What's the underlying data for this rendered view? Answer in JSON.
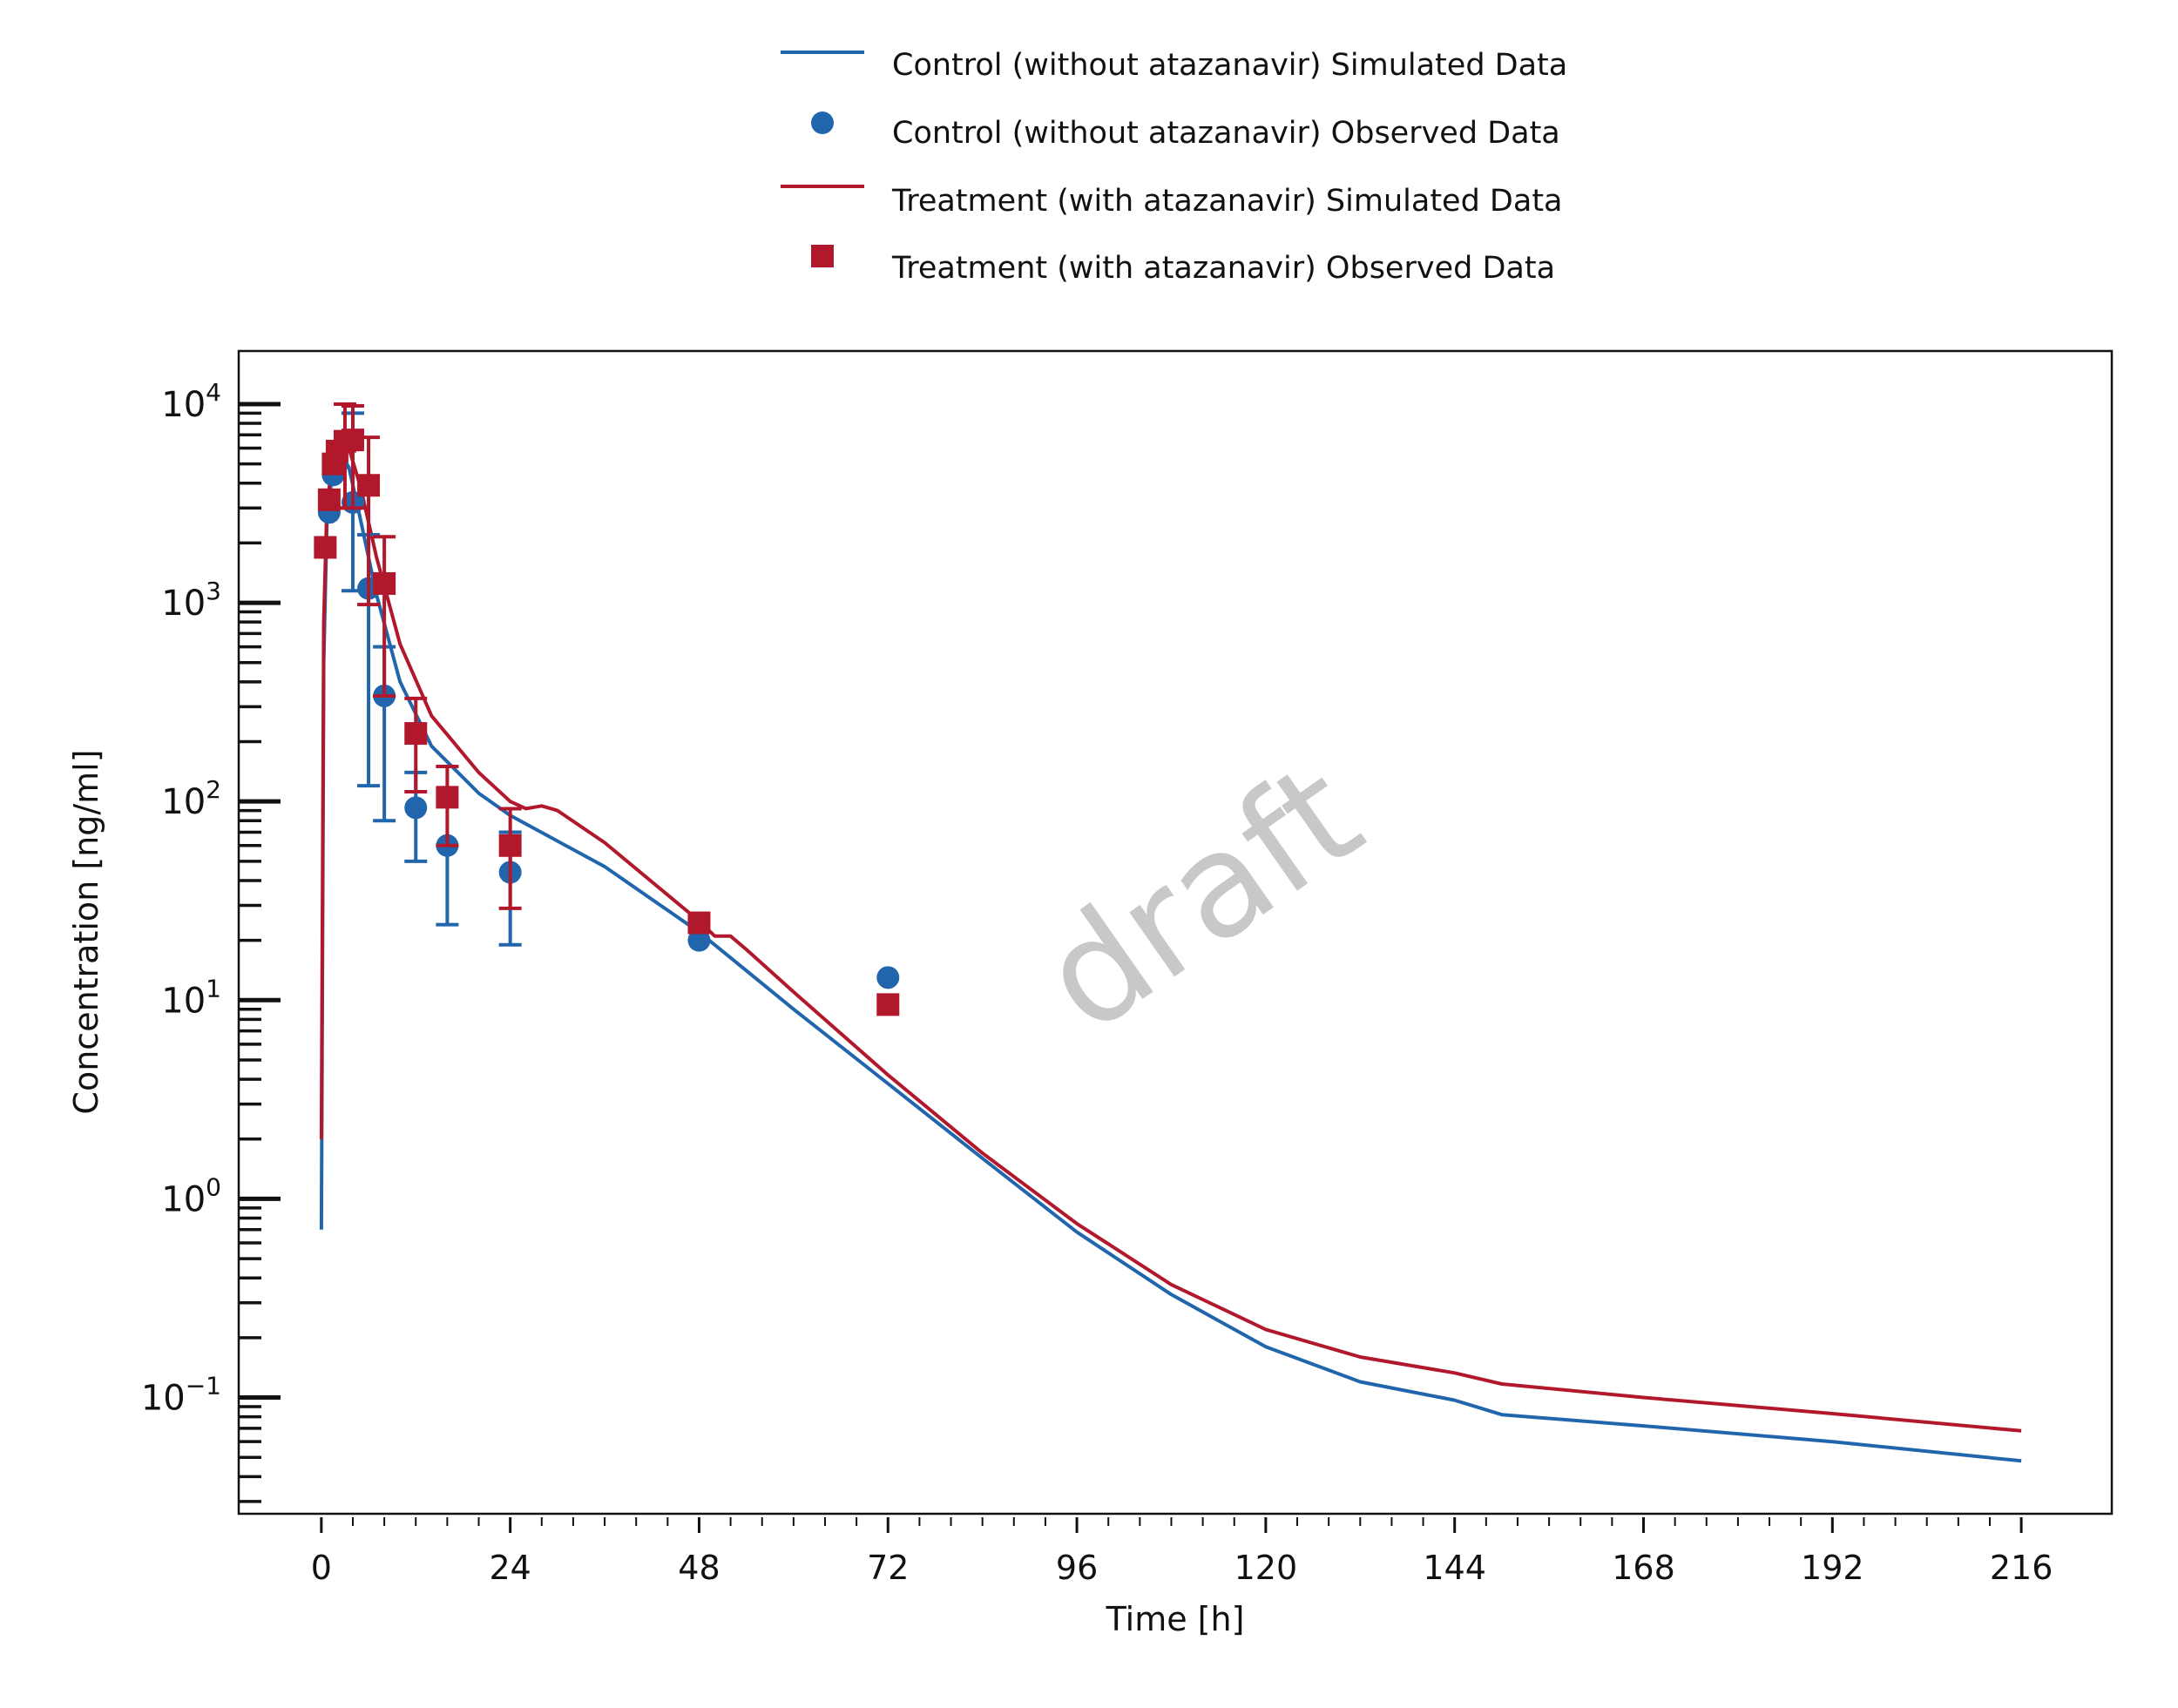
{
  "chart_data": {
    "type": "line",
    "title": "",
    "xlabel": "Time [h]",
    "ylabel": "Concentration [ng/ml]",
    "xlim": [
      -10.5,
      227.5
    ],
    "ylim": [
      0.026,
      18500
    ],
    "yscale": "log",
    "xticks": [
      0,
      24,
      48,
      72,
      96,
      120,
      144,
      168,
      192,
      216
    ],
    "yticks": [
      {
        "base": "10",
        "exp": "−1",
        "value": 0.1
      },
      {
        "base": "10",
        "exp": "0",
        "value": 1
      },
      {
        "base": "10",
        "exp": "1",
        "value": 10
      },
      {
        "base": "10",
        "exp": "2",
        "value": 100
      },
      {
        "base": "10",
        "exp": "3",
        "value": 1000
      },
      {
        "base": "10",
        "exp": "4",
        "value": 10000
      }
    ],
    "legend_position": "top-center",
    "watermark": "draft",
    "colors": {
      "control": "#2166ac",
      "treatment": "#b2182b",
      "watermark": "#c8c8c8"
    },
    "series": [
      {
        "name": "Control (without atazanavir) Simulated Data",
        "kind": "line",
        "color": "#2166ac",
        "x": [
          0,
          0.3,
          0.7,
          1.5,
          2.5,
          3.5,
          5,
          7,
          10,
          14,
          20,
          24,
          36,
          48,
          60,
          72,
          84,
          96,
          108,
          120,
          132,
          144,
          150,
          168,
          192,
          216
        ],
        "y": [
          0.7,
          500,
          2500,
          5000,
          5600,
          4800,
          2600,
          1100,
          400,
          190,
          110,
          85,
          47,
          22,
          9,
          3.8,
          1.6,
          0.68,
          0.33,
          0.18,
          0.12,
          0.097,
          0.082,
          0.072,
          0.06,
          0.048
        ]
      },
      {
        "name": "Control (without atazanavir) Observed Data",
        "kind": "circle",
        "color": "#2166ac",
        "x": [
          0.5,
          1,
          1.5,
          2,
          4,
          6,
          8,
          12,
          16,
          24,
          48,
          72
        ],
        "y": [
          1900,
          2850,
          4400,
          5000,
          3200,
          1180,
          340,
          93,
          60,
          44,
          20,
          13
        ],
        "err_low": [
          null,
          null,
          null,
          null,
          1150,
          120,
          80,
          50,
          24,
          19,
          null,
          null
        ],
        "err_high": [
          null,
          null,
          null,
          null,
          9000,
          2200,
          600,
          140,
          null,
          70,
          null,
          null
        ]
      },
      {
        "name": "Treatment (with atazanavir) Simulated Data",
        "kind": "line",
        "color": "#b2182b",
        "x": [
          0,
          0.3,
          0.7,
          1.5,
          2.5,
          3.5,
          5,
          7,
          10,
          14,
          20,
          24,
          26,
          28,
          30,
          36,
          48,
          50,
          52,
          54,
          60,
          72,
          84,
          96,
          108,
          120,
          132,
          144,
          150,
          168,
          192,
          216
        ],
        "y": [
          2,
          800,
          3000,
          5600,
          6500,
          6000,
          3800,
          1700,
          620,
          270,
          140,
          100,
          92,
          95,
          90,
          62,
          25,
          21,
          21,
          18,
          11,
          4.2,
          1.7,
          0.75,
          0.37,
          0.22,
          0.16,
          0.133,
          0.117,
          0.1,
          0.083,
          0.068
        ]
      },
      {
        "name": "Treatment (with atazanavir) Observed Data",
        "kind": "square",
        "color": "#b2182b",
        "x": [
          0.5,
          1,
          1.5,
          2,
          3,
          4,
          6,
          8,
          12,
          16,
          24,
          48,
          72
        ],
        "y": [
          1900,
          3300,
          5000,
          5800,
          6500,
          6600,
          3900,
          1250,
          220,
          105,
          60,
          24.5,
          9.5
        ],
        "err_low": [
          null,
          null,
          null,
          null,
          3000,
          3000,
          980,
          340,
          112,
          60,
          29,
          null,
          null
        ],
        "err_high": [
          null,
          null,
          null,
          null,
          10000,
          9800,
          6800,
          2150,
          330,
          150,
          92,
          null,
          null
        ]
      }
    ]
  }
}
